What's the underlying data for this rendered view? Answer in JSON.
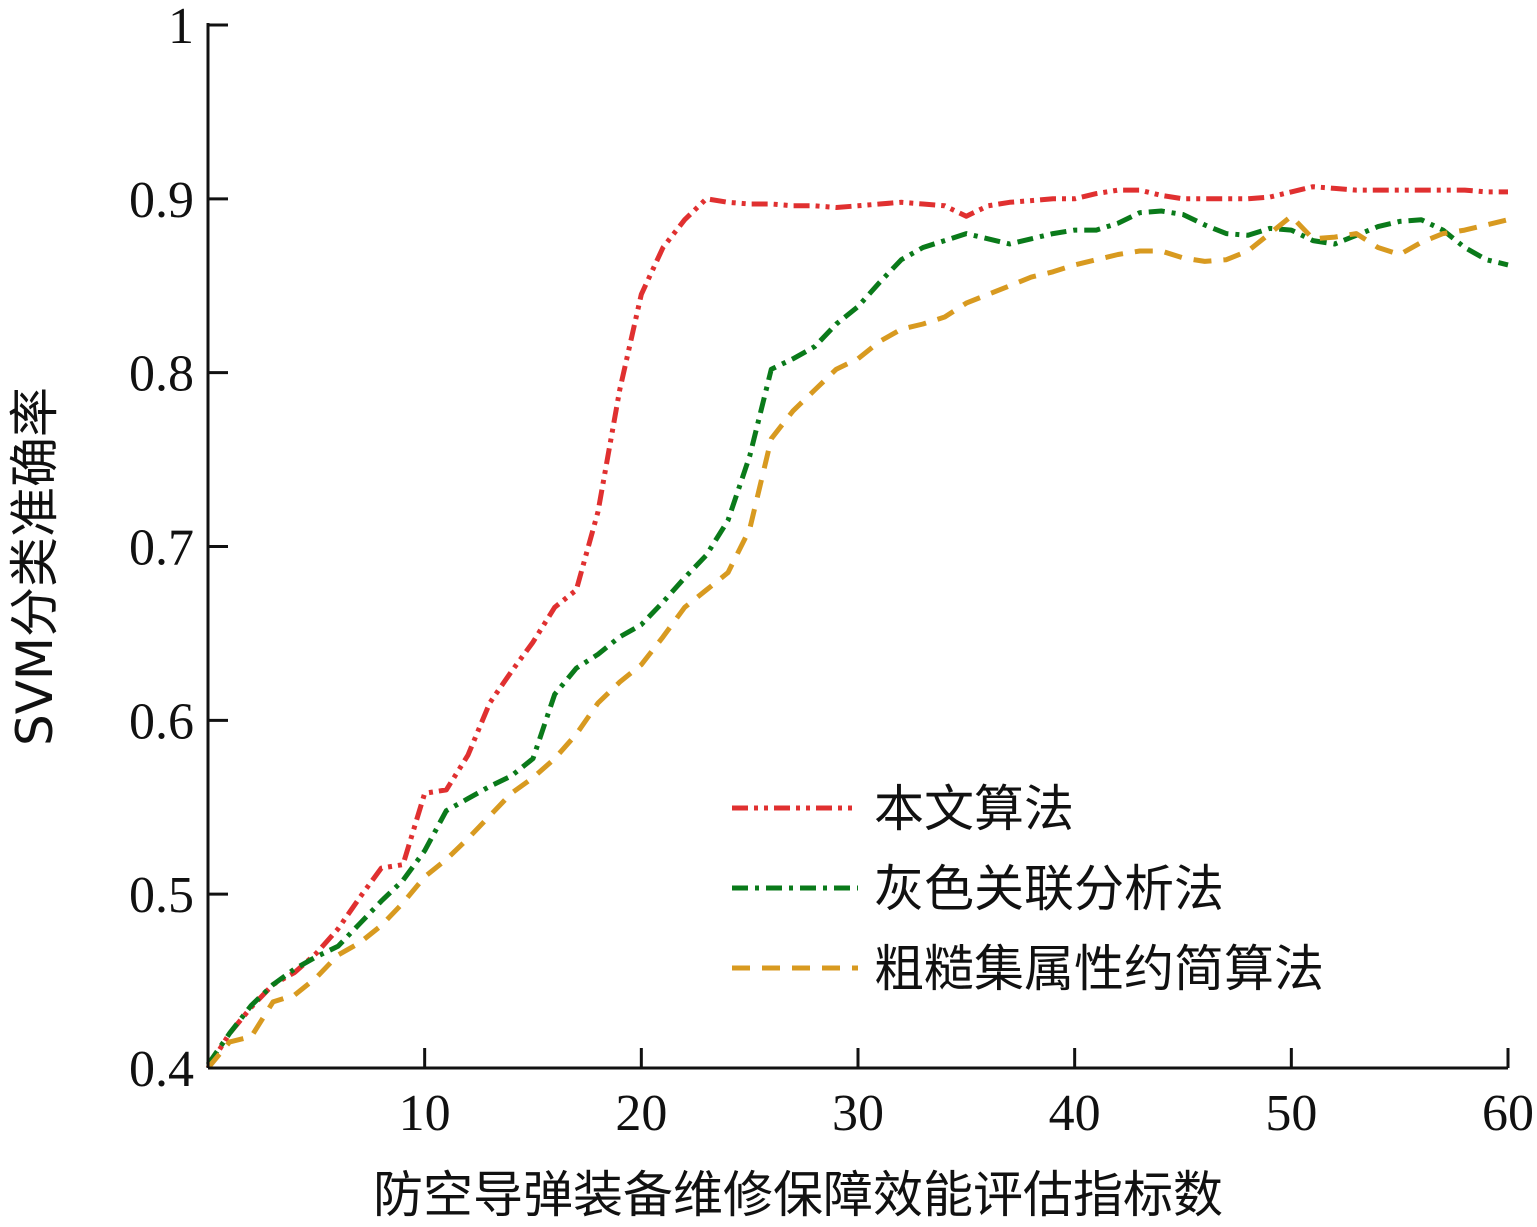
{
  "chart_data": {
    "type": "line",
    "title": "",
    "xlabel": "防空导弹装备维修保障效能评估指标数",
    "ylabel": "SVM分类准确率",
    "xlim": [
      0,
      60
    ],
    "ylim": [
      0.4,
      1.0
    ],
    "xticks": [
      10,
      20,
      30,
      40,
      50,
      60
    ],
    "yticks": [
      0.4,
      0.5,
      0.6,
      0.7,
      0.8,
      0.9,
      1.0
    ],
    "ytick_labels": [
      "0.4",
      "0.5",
      "0.6",
      "0.7",
      "0.8",
      "0.9",
      "1"
    ],
    "grid": false,
    "legend_position": "bottom-right",
    "series": [
      {
        "name": "本文算法",
        "color": "#e03030",
        "dash": "dash-dot-dot",
        "x": [
          0,
          1,
          2,
          3,
          4,
          5,
          6,
          7,
          8,
          9,
          10,
          11,
          12,
          13,
          14,
          15,
          16,
          17,
          18,
          19,
          20,
          21,
          22,
          23,
          24,
          25,
          26,
          27,
          28,
          29,
          30,
          31,
          32,
          33,
          34,
          35,
          36,
          37,
          38,
          39,
          40,
          41,
          42,
          43,
          44,
          45,
          46,
          47,
          48,
          49,
          50,
          51,
          52,
          53,
          54,
          55,
          56,
          57,
          58,
          59,
          60
        ],
        "y": [
          0.4,
          0.42,
          0.435,
          0.448,
          0.455,
          0.466,
          0.48,
          0.498,
          0.515,
          0.517,
          0.558,
          0.56,
          0.58,
          0.61,
          0.628,
          0.645,
          0.665,
          0.675,
          0.72,
          0.79,
          0.845,
          0.872,
          0.888,
          0.9,
          0.898,
          0.897,
          0.897,
          0.896,
          0.896,
          0.895,
          0.896,
          0.897,
          0.898,
          0.897,
          0.896,
          0.89,
          0.896,
          0.898,
          0.899,
          0.9,
          0.9,
          0.903,
          0.905,
          0.905,
          0.902,
          0.9,
          0.9,
          0.9,
          0.9,
          0.901,
          0.904,
          0.907,
          0.906,
          0.905,
          0.905,
          0.905,
          0.905,
          0.905,
          0.905,
          0.904,
          0.904
        ]
      },
      {
        "name": "灰色关联分析法",
        "color": "#0a7a1a",
        "dash": "dash-dot",
        "x": [
          0,
          1,
          2,
          3,
          4,
          5,
          6,
          7,
          8,
          9,
          10,
          11,
          12,
          13,
          14,
          15,
          16,
          17,
          18,
          19,
          20,
          21,
          22,
          23,
          24,
          25,
          26,
          27,
          28,
          29,
          30,
          31,
          32,
          33,
          34,
          35,
          36,
          37,
          38,
          39,
          40,
          41,
          42,
          43,
          44,
          45,
          46,
          47,
          48,
          49,
          50,
          51,
          52,
          53,
          54,
          55,
          56,
          57,
          58,
          59,
          60
        ],
        "y": [
          0.402,
          0.42,
          0.436,
          0.448,
          0.457,
          0.464,
          0.47,
          0.483,
          0.496,
          0.508,
          0.525,
          0.548,
          0.555,
          0.562,
          0.568,
          0.578,
          0.615,
          0.63,
          0.638,
          0.648,
          0.655,
          0.668,
          0.682,
          0.695,
          0.715,
          0.752,
          0.802,
          0.808,
          0.815,
          0.828,
          0.838,
          0.852,
          0.865,
          0.872,
          0.876,
          0.88,
          0.877,
          0.874,
          0.877,
          0.88,
          0.882,
          0.882,
          0.886,
          0.892,
          0.893,
          0.891,
          0.885,
          0.88,
          0.879,
          0.883,
          0.882,
          0.876,
          0.874,
          0.879,
          0.884,
          0.887,
          0.888,
          0.882,
          0.872,
          0.865,
          0.862
        ]
      },
      {
        "name": "粗糙集属性约简算法",
        "color": "#d89a20",
        "dash": "dash",
        "x": [
          0,
          1,
          2,
          3,
          4,
          5,
          6,
          7,
          8,
          9,
          10,
          11,
          12,
          13,
          14,
          15,
          16,
          17,
          18,
          19,
          20,
          21,
          22,
          23,
          24,
          25,
          26,
          27,
          28,
          29,
          30,
          31,
          32,
          33,
          34,
          35,
          36,
          37,
          38,
          39,
          40,
          41,
          42,
          43,
          44,
          45,
          46,
          47,
          48,
          49,
          50,
          51,
          52,
          53,
          54,
          55,
          56,
          57,
          58,
          59,
          60
        ],
        "y": [
          0.4,
          0.415,
          0.418,
          0.438,
          0.442,
          0.452,
          0.465,
          0.472,
          0.482,
          0.495,
          0.51,
          0.52,
          0.532,
          0.545,
          0.558,
          0.567,
          0.578,
          0.592,
          0.61,
          0.622,
          0.632,
          0.648,
          0.665,
          0.675,
          0.685,
          0.71,
          0.762,
          0.778,
          0.79,
          0.802,
          0.808,
          0.818,
          0.825,
          0.828,
          0.832,
          0.84,
          0.845,
          0.85,
          0.855,
          0.858,
          0.862,
          0.865,
          0.868,
          0.87,
          0.87,
          0.866,
          0.864,
          0.865,
          0.87,
          0.88,
          0.89,
          0.877,
          0.878,
          0.88,
          0.872,
          0.868,
          0.875,
          0.88,
          0.882,
          0.885,
          0.888
        ]
      }
    ]
  }
}
